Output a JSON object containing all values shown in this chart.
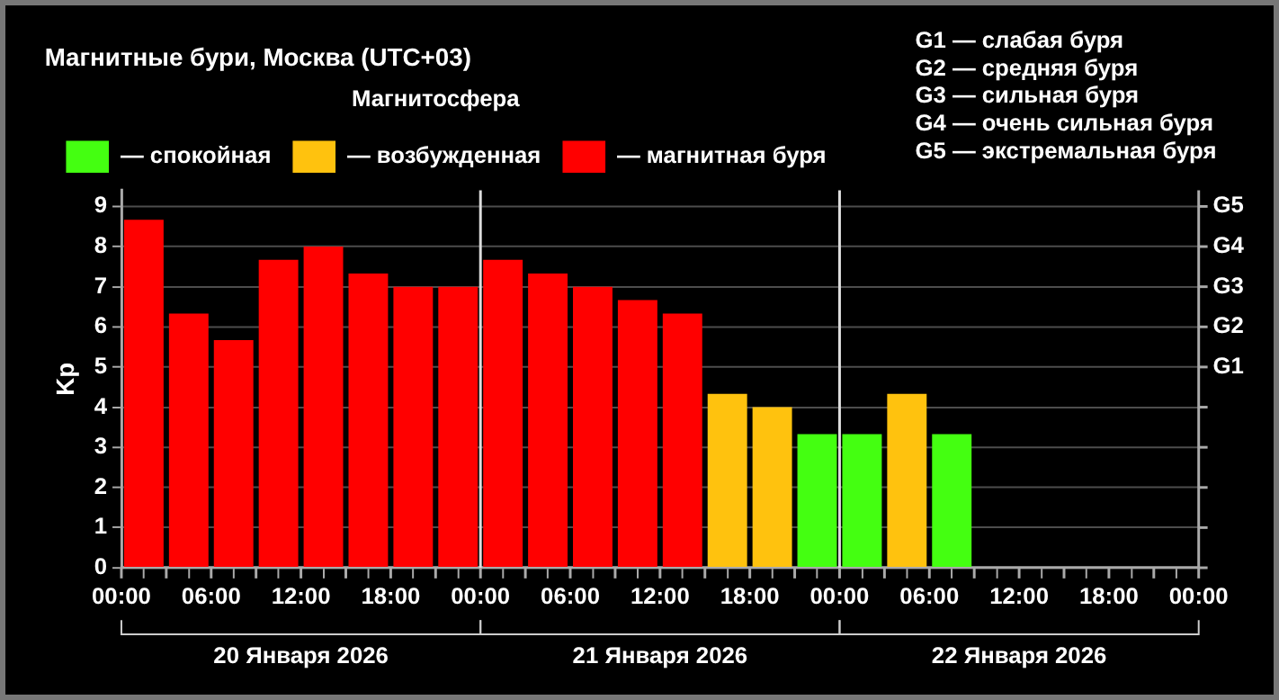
{
  "chart_data": {
    "type": "bar",
    "title": "Магнитные бури, Москва (UTC+03)",
    "legend_title": "Магнитосфера",
    "ylabel": "Kp",
    "x": [
      "2026-01-20T01:30",
      "2026-01-20T04:30",
      "2026-01-20T07:30",
      "2026-01-20T10:30",
      "2026-01-20T13:30",
      "2026-01-20T16:30",
      "2026-01-20T19:30",
      "2026-01-20T22:30",
      "2026-01-21T01:30",
      "2026-01-21T04:30",
      "2026-01-21T07:30",
      "2026-01-21T10:30",
      "2026-01-21T13:30",
      "2026-01-21T16:30",
      "2026-01-21T19:30",
      "2026-01-21T22:30",
      "2026-01-22T01:30",
      "2026-01-22T04:30",
      "2026-01-22T07:30"
    ],
    "series": [
      {
        "name": "— спокойная",
        "color": "#44ff11",
        "values": [
          null,
          null,
          null,
          null,
          null,
          null,
          null,
          null,
          null,
          null,
          null,
          null,
          null,
          null,
          null,
          3.33,
          3.33,
          null,
          3.33
        ]
      },
      {
        "name": "— возбужденная",
        "color": "#ffc20e",
        "values": [
          null,
          null,
          null,
          null,
          null,
          null,
          null,
          null,
          null,
          null,
          null,
          null,
          null,
          4.33,
          4.0,
          null,
          null,
          4.33,
          null
        ]
      },
      {
        "name": "— магнитная буря",
        "color": "#ff0000",
        "values": [
          8.67,
          6.33,
          5.67,
          7.67,
          8.0,
          7.33,
          7.0,
          7.0,
          7.67,
          7.33,
          7.0,
          6.67,
          6.33,
          null,
          null,
          null,
          null,
          null,
          null
        ]
      }
    ],
    "xlim": [
      "2026-01-20T00:00",
      "2026-01-23T00:00"
    ],
    "xticks": [
      {
        "value": "2026-01-20T00:00",
        "label": "00:00"
      },
      {
        "value": "2026-01-20T03:00",
        "label": null
      },
      {
        "value": "2026-01-20T06:00",
        "label": "06:00"
      },
      {
        "value": "2026-01-20T09:00",
        "label": null
      },
      {
        "value": "2026-01-20T12:00",
        "label": "12:00"
      },
      {
        "value": "2026-01-20T15:00",
        "label": null
      },
      {
        "value": "2026-01-20T18:00",
        "label": "18:00"
      },
      {
        "value": "2026-01-20T21:00",
        "label": null
      },
      {
        "value": "2026-01-21T00:00",
        "label": "00:00"
      },
      {
        "value": "2026-01-21T03:00",
        "label": null
      },
      {
        "value": "2026-01-21T06:00",
        "label": "06:00"
      },
      {
        "value": "2026-01-21T09:00",
        "label": null
      },
      {
        "value": "2026-01-21T12:00",
        "label": "12:00"
      },
      {
        "value": "2026-01-21T15:00",
        "label": null
      },
      {
        "value": "2026-01-21T18:00",
        "label": "18:00"
      },
      {
        "value": "2026-01-21T21:00",
        "label": null
      },
      {
        "value": "2026-01-22T00:00",
        "label": "00:00"
      },
      {
        "value": "2026-01-22T03:00",
        "label": null
      },
      {
        "value": "2026-01-22T06:00",
        "label": "06:00"
      },
      {
        "value": "2026-01-22T09:00",
        "label": null
      },
      {
        "value": "2026-01-22T12:00",
        "label": "12:00"
      },
      {
        "value": "2026-01-22T15:00",
        "label": null
      },
      {
        "value": "2026-01-22T18:00",
        "label": "18:00"
      },
      {
        "value": "2026-01-22T21:00",
        "label": null
      },
      {
        "value": "2026-01-23T00:00",
        "label": "00:00"
      }
    ],
    "ylim": [
      0,
      9.4
    ],
    "yticks": [
      0,
      1,
      2,
      3,
      4,
      5,
      6,
      7,
      8,
      9
    ],
    "ref_lines": [
      {
        "axis": "x",
        "value": "2026-01-21T00:00",
        "color": "#dddddd"
      },
      {
        "axis": "x",
        "value": "2026-01-22T00:00",
        "color": "#dddddd"
      }
    ],
    "annotations": [
      "G1 — слабая буря",
      "G2 — средняя буря",
      "G3 — сильная буря",
      "G4 — очень сильная буря",
      "G5 — экстремальная буря",
      "G1",
      "G2",
      "G3",
      "G4",
      "G5",
      "20 Января 2026",
      "21 Января 2026",
      "22 Января 2026"
    ],
    "grid": "y",
    "legend": "top left"
  }
}
